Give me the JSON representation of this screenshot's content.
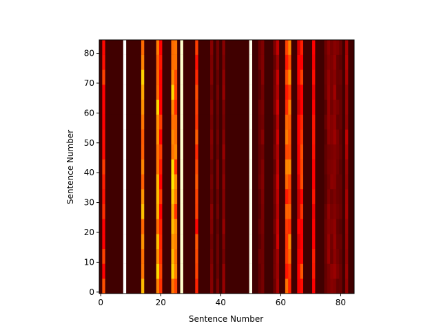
{
  "chart_data": {
    "type": "heatmap",
    "title": "",
    "xlabel": "Sentence Number",
    "ylabel": "Sentence Number",
    "xlim": [
      0,
      85
    ],
    "ylim": [
      0,
      85
    ],
    "xticks": [
      0,
      20,
      40,
      60,
      80
    ],
    "yticks": [
      0,
      10,
      20,
      30,
      40,
      50,
      60,
      70,
      80
    ],
    "colormap": "hot",
    "rows": 85,
    "columns": 85,
    "column_intensity": [
      0.05,
      0.42,
      0.05,
      0.05,
      0.05,
      0.05,
      0.05,
      0.05,
      1.0,
      0.05,
      0.05,
      0.05,
      0.05,
      0.05,
      0.58,
      0.05,
      0.05,
      0.05,
      0.05,
      0.6,
      0.4,
      0.05,
      0.05,
      0.05,
      0.62,
      0.5,
      0.05,
      0.95,
      0.05,
      0.05,
      0.05,
      0.05,
      0.45,
      0.05,
      0.05,
      0.05,
      0.05,
      0.13,
      0.05,
      0.12,
      0.05,
      0.15,
      0.05,
      0.05,
      0.05,
      0.05,
      0.05,
      0.05,
      0.05,
      0.05,
      0.98,
      0.05,
      0.05,
      0.1,
      0.13,
      0.05,
      0.05,
      0.05,
      0.12,
      0.22,
      0.05,
      0.05,
      0.48,
      0.5,
      0.05,
      0.05,
      0.3,
      0.42,
      0.05,
      0.05,
      0.05,
      0.35,
      0.05,
      0.05,
      0.05,
      0.1,
      0.15,
      0.14,
      0.16,
      0.12,
      0.1,
      0.05,
      0.2,
      0.05,
      0.05
    ]
  }
}
